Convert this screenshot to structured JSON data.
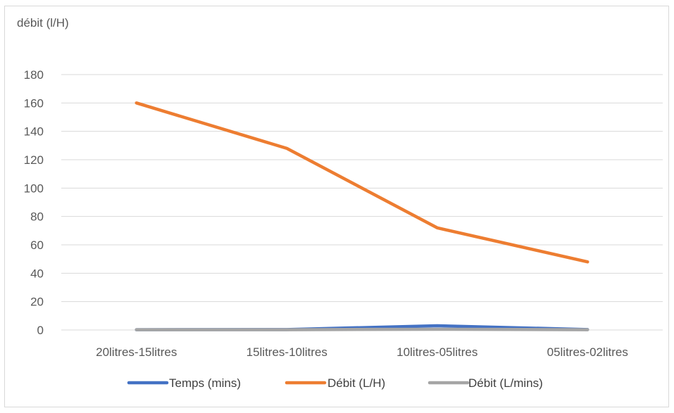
{
  "chart_data": {
    "type": "line",
    "title": "",
    "ylabel": "débit (l/H)",
    "xlabel": "",
    "categories": [
      "20litres-15litres",
      "15litres-10litres",
      "10litres-05litres",
      "05litres-02litres"
    ],
    "ylim": [
      0,
      180
    ],
    "yticks": [
      0,
      20,
      40,
      60,
      80,
      100,
      120,
      140,
      160,
      180
    ],
    "grid": true,
    "legend": "bottom",
    "series": [
      {
        "name": "Temps (mins)",
        "color": "#4472c4",
        "values": [
          0.2,
          0.3,
          3,
          0.3
        ]
      },
      {
        "name": "Débit (L/H)",
        "color": "#ed7d31",
        "values": [
          160,
          128,
          72,
          48
        ]
      },
      {
        "name": "Débit (L/mins)",
        "color": "#a5a5a5",
        "values": [
          0.2,
          0.2,
          0.5,
          0.2
        ]
      }
    ]
  }
}
